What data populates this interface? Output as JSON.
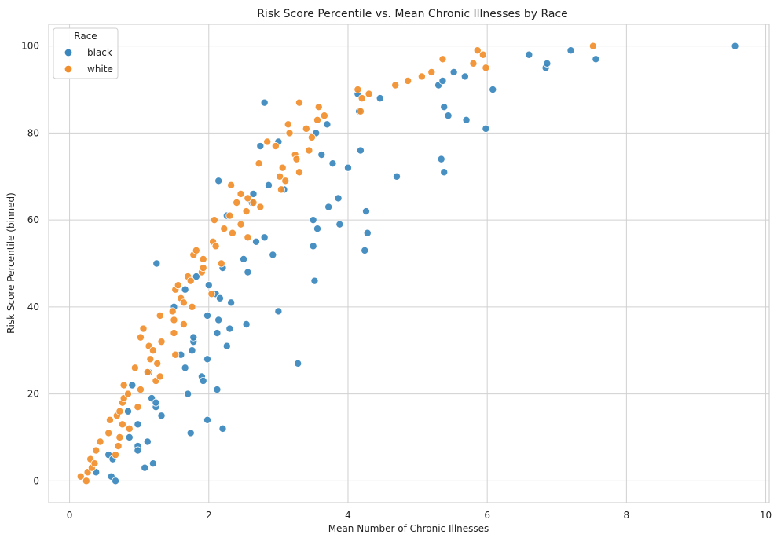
{
  "chart_data": {
    "type": "scatter",
    "title": "Risk Score Percentile vs. Mean Chronic Illnesses by Race",
    "xlabel": "Mean Number of Chronic Illnesses",
    "ylabel": "Risk Score Percentile (binned)",
    "xlim": [
      -0.3,
      10.05
    ],
    "ylim": [
      -5,
      105
    ],
    "xticks": [
      0,
      2,
      4,
      6,
      8,
      10
    ],
    "yticks": [
      0,
      20,
      40,
      60,
      80,
      100
    ],
    "grid": true,
    "legend": {
      "title": "Race",
      "position": "top-left"
    },
    "series": [
      {
        "name": "black",
        "color": "#3a87bd",
        "points": [
          [
            0.38,
            2
          ],
          [
            0.56,
            6
          ],
          [
            0.6,
            1
          ],
          [
            0.62,
            5
          ],
          [
            0.66,
            0
          ],
          [
            0.84,
            16
          ],
          [
            0.86,
            10
          ],
          [
            0.9,
            22
          ],
          [
            0.98,
            8
          ],
          [
            0.98,
            7
          ],
          [
            0.98,
            13
          ],
          [
            1.08,
            3
          ],
          [
            1.12,
            9
          ],
          [
            1.14,
            25
          ],
          [
            1.18,
            19
          ],
          [
            1.2,
            4
          ],
          [
            1.24,
            17
          ],
          [
            1.24,
            18
          ],
          [
            1.25,
            50
          ],
          [
            1.32,
            15
          ],
          [
            1.5,
            40
          ],
          [
            1.6,
            29
          ],
          [
            1.66,
            44
          ],
          [
            1.66,
            26
          ],
          [
            1.7,
            20
          ],
          [
            1.74,
            11
          ],
          [
            1.76,
            30
          ],
          [
            1.78,
            32
          ],
          [
            1.78,
            33
          ],
          [
            1.82,
            47
          ],
          [
            1.9,
            24
          ],
          [
            1.92,
            23
          ],
          [
            1.98,
            38
          ],
          [
            1.98,
            14
          ],
          [
            1.98,
            28
          ],
          [
            2.0,
            45
          ],
          [
            2.1,
            43
          ],
          [
            2.12,
            34
          ],
          [
            2.12,
            21
          ],
          [
            2.14,
            69
          ],
          [
            2.14,
            37
          ],
          [
            2.16,
            42
          ],
          [
            2.2,
            49
          ],
          [
            2.2,
            12
          ],
          [
            2.26,
            61
          ],
          [
            2.26,
            31
          ],
          [
            2.3,
            35
          ],
          [
            2.32,
            41
          ],
          [
            2.5,
            51
          ],
          [
            2.54,
            36
          ],
          [
            2.56,
            48
          ],
          [
            2.62,
            64
          ],
          [
            2.64,
            66
          ],
          [
            2.68,
            55
          ],
          [
            2.74,
            77
          ],
          [
            2.8,
            87
          ],
          [
            2.8,
            56
          ],
          [
            2.86,
            68
          ],
          [
            2.92,
            52
          ],
          [
            3.0,
            78
          ],
          [
            3.0,
            39
          ],
          [
            3.08,
            67
          ],
          [
            3.28,
            27
          ],
          [
            3.5,
            54
          ],
          [
            3.5,
            60
          ],
          [
            3.52,
            46
          ],
          [
            3.54,
            80
          ],
          [
            3.56,
            58
          ],
          [
            3.62,
            75
          ],
          [
            3.7,
            82
          ],
          [
            3.72,
            63
          ],
          [
            3.78,
            73
          ],
          [
            3.86,
            65
          ],
          [
            3.88,
            59
          ],
          [
            4.0,
            72
          ],
          [
            4.14,
            89
          ],
          [
            4.16,
            85
          ],
          [
            4.18,
            76
          ],
          [
            4.24,
            53
          ],
          [
            4.26,
            62
          ],
          [
            4.28,
            57
          ],
          [
            4.46,
            88
          ],
          [
            4.7,
            70
          ],
          [
            5.3,
            91
          ],
          [
            5.34,
            74
          ],
          [
            5.36,
            92
          ],
          [
            5.38,
            71
          ],
          [
            5.38,
            86
          ],
          [
            5.44,
            84
          ],
          [
            5.52,
            94
          ],
          [
            5.68,
            93
          ],
          [
            5.7,
            83
          ],
          [
            5.98,
            81
          ],
          [
            6.08,
            90
          ],
          [
            6.6,
            98
          ],
          [
            6.84,
            95
          ],
          [
            6.86,
            96
          ],
          [
            7.2,
            99
          ],
          [
            7.56,
            97
          ],
          [
            9.56,
            100
          ]
        ]
      },
      {
        "name": "white",
        "color": "#f28e2b",
        "points": [
          [
            0.16,
            1
          ],
          [
            0.24,
            0
          ],
          [
            0.26,
            2
          ],
          [
            0.3,
            5
          ],
          [
            0.32,
            3
          ],
          [
            0.36,
            4
          ],
          [
            0.38,
            7
          ],
          [
            0.44,
            9
          ],
          [
            0.56,
            11
          ],
          [
            0.58,
            14
          ],
          [
            0.66,
            6
          ],
          [
            0.68,
            15
          ],
          [
            0.7,
            8
          ],
          [
            0.72,
            16
          ],
          [
            0.72,
            10
          ],
          [
            0.76,
            18
          ],
          [
            0.76,
            13
          ],
          [
            0.78,
            19
          ],
          [
            0.78,
            22
          ],
          [
            0.84,
            20
          ],
          [
            0.86,
            12
          ],
          [
            0.94,
            26
          ],
          [
            0.98,
            17
          ],
          [
            1.02,
            21
          ],
          [
            1.02,
            33
          ],
          [
            1.06,
            35
          ],
          [
            1.12,
            25
          ],
          [
            1.14,
            31
          ],
          [
            1.16,
            28
          ],
          [
            1.2,
            30
          ],
          [
            1.24,
            23
          ],
          [
            1.26,
            27
          ],
          [
            1.3,
            24
          ],
          [
            1.3,
            38
          ],
          [
            1.32,
            32
          ],
          [
            1.48,
            39
          ],
          [
            1.5,
            37
          ],
          [
            1.5,
            34
          ],
          [
            1.52,
            44
          ],
          [
            1.52,
            29
          ],
          [
            1.56,
            45
          ],
          [
            1.6,
            42
          ],
          [
            1.64,
            36
          ],
          [
            1.64,
            41
          ],
          [
            1.7,
            47
          ],
          [
            1.74,
            46
          ],
          [
            1.76,
            40
          ],
          [
            1.78,
            52
          ],
          [
            1.82,
            53
          ],
          [
            1.9,
            48
          ],
          [
            1.92,
            49
          ],
          [
            1.92,
            51
          ],
          [
            2.04,
            43
          ],
          [
            2.06,
            55
          ],
          [
            2.08,
            60
          ],
          [
            2.1,
            54
          ],
          [
            2.18,
            50
          ],
          [
            2.22,
            58
          ],
          [
            2.3,
            61
          ],
          [
            2.32,
            68
          ],
          [
            2.34,
            57
          ],
          [
            2.4,
            64
          ],
          [
            2.46,
            66
          ],
          [
            2.46,
            59
          ],
          [
            2.54,
            62
          ],
          [
            2.56,
            65
          ],
          [
            2.56,
            56
          ],
          [
            2.64,
            64
          ],
          [
            2.72,
            73
          ],
          [
            2.74,
            63
          ],
          [
            2.84,
            78
          ],
          [
            2.96,
            77
          ],
          [
            3.02,
            70
          ],
          [
            3.04,
            67
          ],
          [
            3.06,
            72
          ],
          [
            3.1,
            69
          ],
          [
            3.14,
            82
          ],
          [
            3.16,
            80
          ],
          [
            3.24,
            75
          ],
          [
            3.26,
            74
          ],
          [
            3.3,
            71
          ],
          [
            3.3,
            87
          ],
          [
            3.4,
            81
          ],
          [
            3.44,
            76
          ],
          [
            3.48,
            79
          ],
          [
            3.56,
            83
          ],
          [
            3.58,
            86
          ],
          [
            3.66,
            84
          ],
          [
            4.14,
            90
          ],
          [
            4.18,
            85
          ],
          [
            4.2,
            88
          ],
          [
            4.3,
            89
          ],
          [
            4.68,
            91
          ],
          [
            4.86,
            92
          ],
          [
            5.06,
            93
          ],
          [
            5.2,
            94
          ],
          [
            5.36,
            97
          ],
          [
            5.8,
            96
          ],
          [
            5.86,
            99
          ],
          [
            5.94,
            98
          ],
          [
            5.98,
            95
          ],
          [
            7.52,
            100
          ]
        ]
      }
    ]
  }
}
